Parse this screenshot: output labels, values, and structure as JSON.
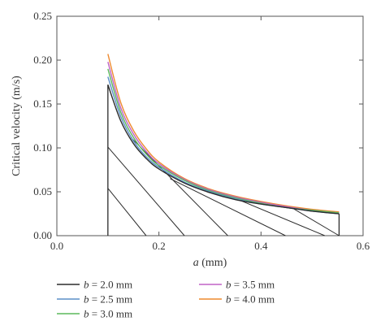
{
  "chart_data": {
    "type": "line",
    "title": "",
    "xlabel": "a (mm)",
    "xlabel_var": "a",
    "xlabel_unit": " (mm)",
    "ylabel": "Critical velocity (m/s)",
    "xlim": [
      0.0,
      0.6
    ],
    "ylim": [
      0.0,
      0.25
    ],
    "xticks": [
      "0.0",
      "0.2",
      "0.4",
      "0.6"
    ],
    "yticks": [
      "0.00",
      "0.05",
      "0.10",
      "0.15",
      "0.20",
      "0.25"
    ],
    "grid": false,
    "legend_position": "bottom",
    "x": [
      0.1,
      0.125,
      0.15,
      0.175,
      0.2,
      0.25,
      0.3,
      0.35,
      0.4,
      0.45,
      0.5,
      0.553
    ],
    "series": [
      {
        "name": "b = 2.0 mm",
        "label_var": "b",
        "label_rest": " = 2.0 mm",
        "color": "#2b2b2b",
        "values": [
          0.172,
          0.131,
          0.105,
          0.088,
          0.076,
          0.06,
          0.049,
          0.041,
          0.036,
          0.032,
          0.028,
          0.025
        ]
      },
      {
        "name": "b = 2.5 mm",
        "label_var": "b",
        "label_rest": " = 2.5 mm",
        "color": "#5b8fc7",
        "values": [
          0.181,
          0.136,
          0.108,
          0.09,
          0.078,
          0.061,
          0.05,
          0.042,
          0.036,
          0.032,
          0.028,
          0.025
        ]
      },
      {
        "name": "b = 3.0 mm",
        "label_var": "b",
        "label_rest": " = 3.0 mm",
        "color": "#5cb85c",
        "values": [
          0.19,
          0.141,
          0.112,
          0.093,
          0.08,
          0.063,
          0.051,
          0.043,
          0.037,
          0.032,
          0.029,
          0.026
        ]
      },
      {
        "name": "b = 3.5 mm",
        "label_var": "b",
        "label_rest": " = 3.5 mm",
        "color": "#c062c5",
        "values": [
          0.198,
          0.146,
          0.116,
          0.096,
          0.082,
          0.064,
          0.052,
          0.044,
          0.038,
          0.033,
          0.029,
          0.026
        ]
      },
      {
        "name": "b = 4.0 mm",
        "label_var": "b",
        "label_rest": " = 4.0 mm",
        "color": "#ee8a2f",
        "values": [
          0.207,
          0.152,
          0.12,
          0.099,
          0.084,
          0.065,
          0.053,
          0.045,
          0.039,
          0.034,
          0.03,
          0.027
        ]
      }
    ],
    "hatch_region": {
      "left_boundary_x": 0.1,
      "right_boundary_x": 0.553,
      "hatch_lines": [
        {
          "from": [
            0.1,
            0.054
          ],
          "to": [
            0.175,
            0.0
          ]
        },
        {
          "from": [
            0.1,
            0.101
          ],
          "to": [
            0.25,
            0.0
          ]
        },
        {
          "from": [
            0.145,
            0.112
          ],
          "to": [
            0.335,
            0.0
          ]
        },
        {
          "from": [
            0.222,
            0.065
          ],
          "to": [
            0.448,
            0.0
          ]
        },
        {
          "from": [
            0.36,
            0.04
          ],
          "to": [
            0.525,
            0.0
          ]
        },
        {
          "from": [
            0.46,
            0.032
          ],
          "to": [
            0.553,
            0.0
          ]
        }
      ],
      "color": "#2b2b2b"
    }
  }
}
